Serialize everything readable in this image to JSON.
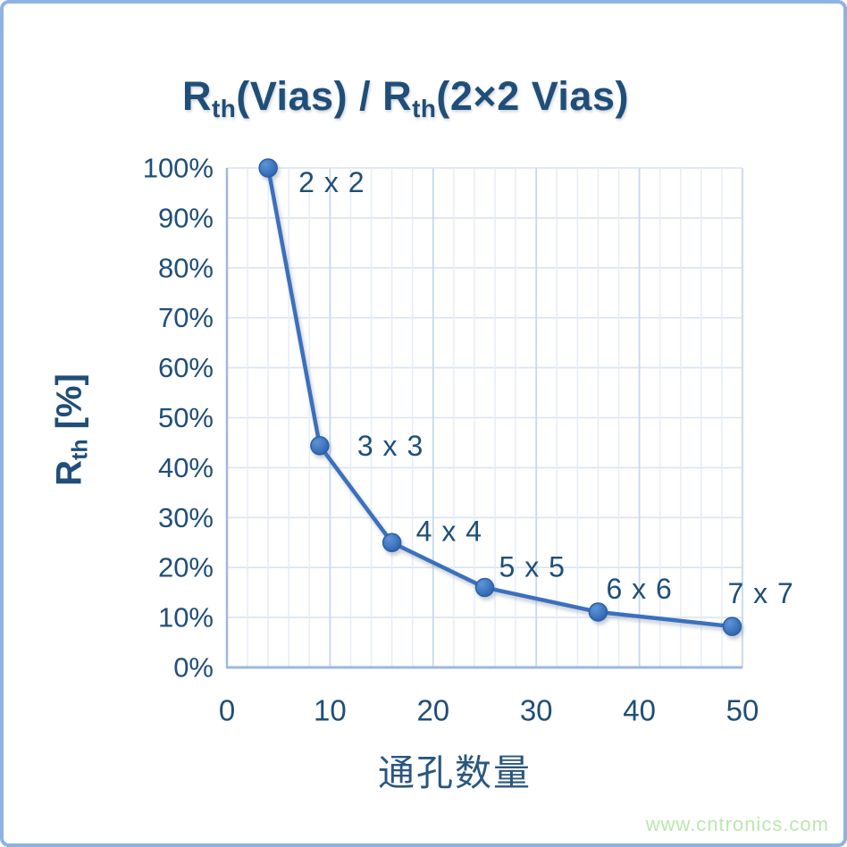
{
  "title": {
    "r1": "R",
    "sub1": "th",
    "mid": "(Vias) / R",
    "sub2": "th",
    "end": "(2×2 Vias)"
  },
  "y_axis_title": {
    "r": "R",
    "sub": "th",
    "rest": " [%]"
  },
  "x_axis_title": "通孔数量",
  "watermark": "www.cntronics.com",
  "colors": {
    "text": "#1f4e79",
    "line": "#3a70bc",
    "marker_light": "#5e95d8",
    "marker_dark": "#2d63ae",
    "marker_stroke": "#2b5fa5",
    "grid_h": "#dae4f1",
    "grid_v_minor": "#e6edf7",
    "grid_v_major": "#c8d8ec",
    "axis": "#9db9de",
    "frame_border": "#8db3e2",
    "watermark_green": "#bde5b1"
  },
  "chart_data": {
    "type": "line",
    "title": "Rth(Vias) / Rth(2×2 Vias)",
    "xlabel": "通孔数量",
    "ylabel": "Rth [%]",
    "xlim": [
      0,
      50
    ],
    "ylim": [
      0,
      100
    ],
    "grid": true,
    "x_axis": {
      "ticks": [
        0,
        10,
        20,
        30,
        40,
        50
      ],
      "minor_step": 2
    },
    "y_axis": {
      "tick_labels": [
        "0%",
        "10%",
        "20%",
        "30%",
        "40%",
        "50%",
        "60%",
        "70%",
        "80%",
        "90%",
        "100%"
      ],
      "tick_step": 10
    },
    "series": [
      {
        "name": "Rth(Vias) / Rth(2x2 Vias)",
        "points": [
          {
            "x": 4,
            "y": 100,
            "label": "2 x 2"
          },
          {
            "x": 9,
            "y": 44.4,
            "label": "3 x 3"
          },
          {
            "x": 16,
            "y": 25,
            "label": "4 x 4"
          },
          {
            "x": 25,
            "y": 16,
            "label": "5 x 5"
          },
          {
            "x": 36,
            "y": 11.1,
            "label": "6 x 6"
          },
          {
            "x": 49,
            "y": 8.2,
            "label": "7 x 7"
          }
        ]
      }
    ]
  }
}
